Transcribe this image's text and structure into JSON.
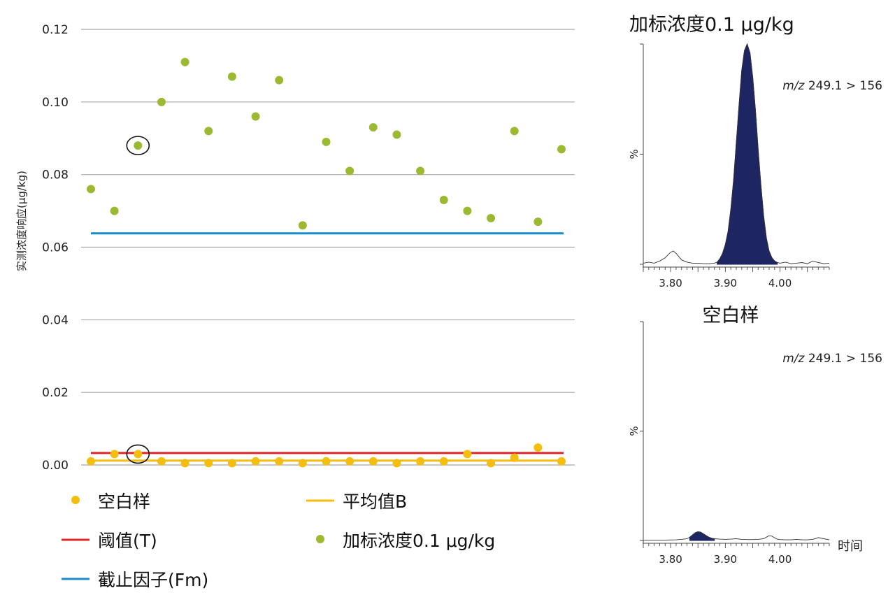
{
  "chart_data": [
    {
      "type": "scatter",
      "xlabel": "",
      "ylabel": "实测浓度响应(μg/kg)",
      "ylim": [
        0,
        0.12
      ],
      "y_ticks": [
        "0.00",
        "0.02",
        "0.04",
        "0.06",
        "0.08",
        "0.10",
        "0.12"
      ],
      "grid": "horizontal",
      "x_count": 21,
      "series": [
        {
          "name": "空白样",
          "kind": "scatter",
          "color": "#f5be0f",
          "values": [
            0.001,
            0.003,
            0.003,
            0.001,
            0.0005,
            0.0005,
            0.0005,
            0.001,
            0.001,
            0.0005,
            0.001,
            0.001,
            0.001,
            0.0005,
            0.001,
            0.001,
            0.003,
            0.0005,
            0.002,
            0.0048,
            0.001
          ]
        },
        {
          "name": "加标浓度0.1 μg/kg",
          "kind": "scatter",
          "color": "#9bba32",
          "values": [
            0.076,
            0.07,
            0.088,
            0.1,
            0.111,
            0.092,
            0.107,
            0.096,
            0.106,
            0.066,
            0.089,
            0.081,
            0.093,
            0.091,
            0.081,
            0.073,
            0.07,
            0.068,
            0.092,
            0.067,
            0.087
          ]
        },
        {
          "name": "平均值B",
          "kind": "hline",
          "color": "#f5be0f",
          "value": 0.0012
        },
        {
          "name": "阈值(T)",
          "kind": "hline",
          "color": "#e0262b",
          "value": 0.0033
        },
        {
          "name": "截止因子(Fm)",
          "kind": "hline",
          "color": "#1a8cc8",
          "value": 0.0638
        }
      ],
      "circled_points": [
        {
          "series": "加标浓度0.1 μg/kg",
          "index": 2
        },
        {
          "series": "空白样",
          "index": 2
        }
      ],
      "legend": {
        "placement": "bottom",
        "items": [
          {
            "label": "空白样",
            "marker": "dot",
            "color": "#f5be0f"
          },
          {
            "label": "平均值B",
            "marker": "line",
            "color": "#f5be0f"
          },
          {
            "label": "阈值(T)",
            "marker": "line",
            "color": "#e0262b"
          },
          {
            "label": "加标浓度0.1 μg/kg",
            "marker": "dot",
            "color": "#9bba32"
          },
          {
            "label": "截止因子(Fm)",
            "marker": "line",
            "color": "#1a8cc8"
          }
        ]
      }
    },
    {
      "type": "area",
      "title": "加标浓度0.1 μg/kg",
      "annotation_italic": "m/z",
      "annotation_rest": " 249.1 > 156",
      "ylabel": "%",
      "xlabel": "",
      "x_ticks": [
        "3.80",
        "3.90",
        "4.00"
      ],
      "xlim": [
        3.75,
        4.09
      ],
      "ylim": [
        0,
        100
      ],
      "fill_color": "#1e2563",
      "fill_range": [
        3.883,
        3.997
      ],
      "x": [
        3.75,
        3.76,
        3.77,
        3.78,
        3.79,
        3.8,
        3.805,
        3.81,
        3.82,
        3.83,
        3.84,
        3.85,
        3.86,
        3.87,
        3.88,
        3.885,
        3.89,
        3.895,
        3.9,
        3.905,
        3.91,
        3.915,
        3.92,
        3.925,
        3.93,
        3.935,
        3.94,
        3.945,
        3.95,
        3.955,
        3.96,
        3.965,
        3.97,
        3.975,
        3.98,
        3.985,
        3.99,
        3.995,
        4.0,
        4.01,
        4.02,
        4.03,
        4.04,
        4.05,
        4.06,
        4.07,
        4.08,
        4.09
      ],
      "y": [
        0.5,
        1.0,
        0.5,
        1.5,
        3.0,
        5.5,
        6.0,
        5.0,
        2.0,
        1.0,
        0.5,
        0.5,
        0.3,
        0.3,
        0.5,
        1.0,
        2.5,
        5.0,
        9.0,
        15.0,
        25.0,
        38.0,
        55.0,
        72.0,
        88.0,
        97.0,
        100.0,
        96.0,
        85.0,
        70.0,
        52.0,
        36.0,
        22.0,
        12.0,
        6.0,
        3.0,
        1.5,
        0.8,
        0.5,
        1.0,
        0.3,
        0.5,
        0.8,
        0.3,
        1.5,
        0.8,
        0.3,
        0.5
      ]
    },
    {
      "type": "area",
      "title": "空白样",
      "annotation_italic": "m/z",
      "annotation_rest": " 249.1 > 156",
      "ylabel": "%",
      "xlabel": "时间",
      "x_ticks": [
        "3.80",
        "3.90",
        "4.00"
      ],
      "xlim": [
        3.75,
        4.09
      ],
      "ylim": [
        0,
        100
      ],
      "fill_color": "#1e2563",
      "fill_range": [
        3.832,
        3.88
      ],
      "x": [
        3.75,
        3.77,
        3.79,
        3.81,
        3.82,
        3.83,
        3.835,
        3.84,
        3.845,
        3.85,
        3.855,
        3.86,
        3.865,
        3.87,
        3.875,
        3.88,
        3.89,
        3.9,
        3.91,
        3.92,
        3.93,
        3.94,
        3.95,
        3.96,
        3.97,
        3.975,
        3.98,
        3.985,
        3.99,
        3.995,
        4.0,
        4.01,
        4.02,
        4.03,
        4.04,
        4.05,
        4.06,
        4.07,
        4.08,
        4.09
      ],
      "y": [
        0.2,
        0.2,
        0.2,
        0.3,
        0.5,
        0.8,
        1.5,
        2.5,
        3.5,
        4.0,
        3.8,
        3.0,
        2.2,
        1.5,
        1.0,
        0.8,
        0.6,
        0.5,
        0.6,
        0.8,
        0.5,
        0.4,
        0.4,
        0.5,
        0.8,
        1.5,
        2.2,
        2.0,
        1.2,
        0.6,
        0.4,
        0.3,
        0.3,
        0.5,
        0.3,
        0.3,
        0.5,
        1.3,
        0.8,
        0.3
      ]
    }
  ]
}
